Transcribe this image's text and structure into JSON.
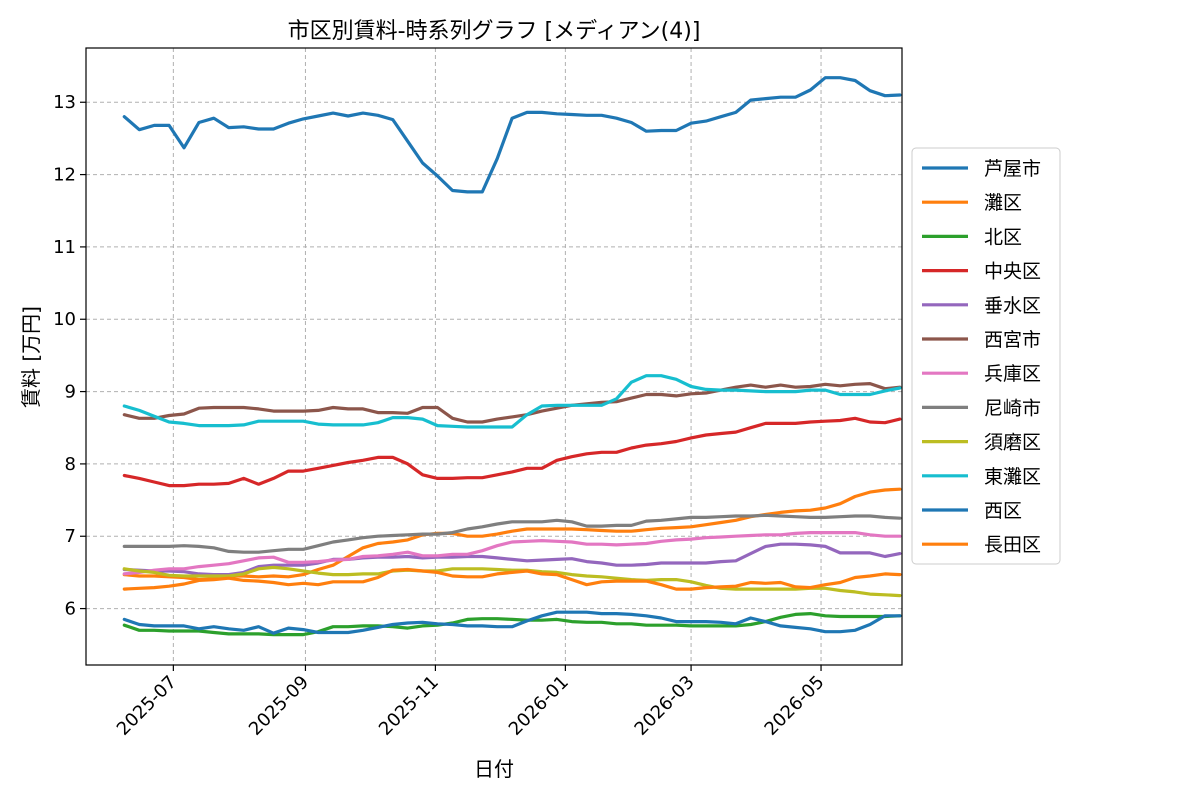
{
  "chart_data": {
    "type": "line",
    "title": "市区別賃料-時系列グラフ [メディアン(4)]",
    "xlabel": "日付",
    "ylabel": "賃料 [万円]",
    "grid": true,
    "legend_position": "right",
    "x_ticks": [
      "2025-07",
      "2025-09",
      "2025-11",
      "2026-01",
      "2026-03",
      "2026-05"
    ],
    "xlim": [
      "2025-05-21",
      "2026-06-08"
    ],
    "y_ticks": [
      6,
      7,
      8,
      9,
      10,
      11,
      12,
      13
    ],
    "ylim": [
      5.22,
      13.75
    ],
    "dates": [
      "2025-06-08",
      "2025-06-15",
      "2025-06-22",
      "2025-06-29",
      "2025-07-06",
      "2025-07-13",
      "2025-07-20",
      "2025-07-27",
      "2025-08-03",
      "2025-08-10",
      "2025-08-17",
      "2025-08-24",
      "2025-08-31",
      "2025-09-07",
      "2025-09-14",
      "2025-09-21",
      "2025-09-28",
      "2025-10-05",
      "2025-10-12",
      "2025-10-19",
      "2025-10-26",
      "2025-11-02",
      "2025-11-09",
      "2025-11-16",
      "2025-11-23",
      "2025-11-30",
      "2025-12-07",
      "2025-12-14",
      "2025-12-21",
      "2025-12-28",
      "2026-01-04",
      "2026-01-11",
      "2026-01-18",
      "2026-01-25",
      "2026-02-01",
      "2026-02-08",
      "2026-02-15",
      "2026-02-22",
      "2026-03-01",
      "2026-03-08",
      "2026-03-15",
      "2026-03-22",
      "2026-03-29",
      "2026-04-05",
      "2026-04-12",
      "2026-04-19",
      "2026-04-26",
      "2026-05-03",
      "2026-05-10",
      "2026-05-17",
      "2026-05-24",
      "2026-05-31",
      "2026-06-07"
    ],
    "series": [
      {
        "name": "芦屋市",
        "color": "#1f77b4",
        "values": [
          12.8,
          12.62,
          12.68,
          12.68,
          12.37,
          12.72,
          12.78,
          12.65,
          12.66,
          12.63,
          12.63,
          12.71,
          12.77,
          12.81,
          12.85,
          12.81,
          12.85,
          12.82,
          12.76,
          12.46,
          12.16,
          11.98,
          11.78,
          11.76,
          11.76,
          12.22,
          12.78,
          12.86,
          12.86,
          12.84,
          12.83,
          12.82,
          12.82,
          12.78,
          12.72,
          12.6,
          12.61,
          12.61,
          12.71,
          12.74,
          12.8,
          12.86,
          13.03,
          13.05,
          13.07,
          13.07,
          13.17,
          13.34,
          13.34,
          13.3,
          13.16,
          13.09,
          13.1
        ]
      },
      {
        "name": "灘区",
        "color": "#ff7f0e",
        "values": [
          6.47,
          6.45,
          6.45,
          6.44,
          6.43,
          6.4,
          6.41,
          6.45,
          6.45,
          6.44,
          6.45,
          6.44,
          6.47,
          6.54,
          6.6,
          6.72,
          6.84,
          6.9,
          6.92,
          6.95,
          7.02,
          7.04,
          7.04,
          7.0,
          7.0,
          7.03,
          7.07,
          7.1,
          7.1,
          7.1,
          7.1,
          7.09,
          7.08,
          7.07,
          7.07,
          7.09,
          7.11,
          7.12,
          7.13,
          7.16,
          7.19,
          7.22,
          7.27,
          7.3,
          7.33,
          7.35,
          7.36,
          7.39,
          7.45,
          7.55,
          7.61,
          7.64,
          7.65
        ]
      },
      {
        "name": "北区",
        "color": "#2ca02c",
        "values": [
          5.77,
          5.7,
          5.7,
          5.69,
          5.69,
          5.69,
          5.67,
          5.65,
          5.65,
          5.65,
          5.64,
          5.64,
          5.64,
          5.68,
          5.75,
          5.75,
          5.76,
          5.76,
          5.75,
          5.73,
          5.76,
          5.77,
          5.8,
          5.85,
          5.86,
          5.86,
          5.85,
          5.84,
          5.84,
          5.85,
          5.82,
          5.81,
          5.81,
          5.79,
          5.79,
          5.77,
          5.77,
          5.77,
          5.76,
          5.76,
          5.76,
          5.76,
          5.78,
          5.82,
          5.88,
          5.92,
          5.93,
          5.9,
          5.89,
          5.89,
          5.89,
          5.89,
          5.9
        ]
      },
      {
        "name": "中央区",
        "color": "#d62728",
        "values": [
          7.84,
          7.8,
          7.75,
          7.7,
          7.7,
          7.72,
          7.72,
          7.73,
          7.8,
          7.72,
          7.8,
          7.9,
          7.9,
          7.94,
          7.98,
          8.02,
          8.05,
          8.09,
          8.09,
          8.0,
          7.85,
          7.8,
          7.8,
          7.81,
          7.81,
          7.85,
          7.89,
          7.94,
          7.94,
          8.05,
          8.1,
          8.14,
          8.16,
          8.16,
          8.22,
          8.26,
          8.28,
          8.31,
          8.36,
          8.4,
          8.42,
          8.44,
          8.5,
          8.56,
          8.56,
          8.56,
          8.58,
          8.59,
          8.6,
          8.63,
          8.58,
          8.57,
          8.62
        ]
      },
      {
        "name": "垂水区",
        "color": "#9467bd",
        "values": [
          6.54,
          6.53,
          6.52,
          6.52,
          6.51,
          6.48,
          6.47,
          6.47,
          6.5,
          6.58,
          6.6,
          6.6,
          6.6,
          6.63,
          6.68,
          6.68,
          6.7,
          6.71,
          6.71,
          6.72,
          6.7,
          6.71,
          6.71,
          6.72,
          6.72,
          6.7,
          6.68,
          6.66,
          6.67,
          6.68,
          6.69,
          6.65,
          6.63,
          6.6,
          6.6,
          6.61,
          6.63,
          6.63,
          6.63,
          6.63,
          6.65,
          6.66,
          6.76,
          6.86,
          6.89,
          6.89,
          6.88,
          6.86,
          6.77,
          6.77,
          6.77,
          6.72,
          6.76
        ]
      },
      {
        "name": "西宮市",
        "color": "#8c564b",
        "values": [
          8.68,
          8.63,
          8.63,
          8.67,
          8.69,
          8.77,
          8.78,
          8.78,
          8.78,
          8.76,
          8.73,
          8.73,
          8.73,
          8.74,
          8.78,
          8.76,
          8.76,
          8.71,
          8.71,
          8.7,
          8.78,
          8.78,
          8.63,
          8.58,
          8.58,
          8.62,
          8.65,
          8.68,
          8.73,
          8.77,
          8.81,
          8.83,
          8.85,
          8.86,
          8.91,
          8.96,
          8.96,
          8.94,
          8.97,
          8.98,
          9.02,
          9.06,
          9.09,
          9.06,
          9.09,
          9.06,
          9.07,
          9.1,
          9.08,
          9.1,
          9.11,
          9.04,
          9.06
        ]
      },
      {
        "name": "兵庫区",
        "color": "#e377c2",
        "values": [
          6.48,
          6.5,
          6.53,
          6.55,
          6.55,
          6.58,
          6.6,
          6.62,
          6.66,
          6.7,
          6.71,
          6.64,
          6.64,
          6.65,
          6.67,
          6.68,
          6.72,
          6.73,
          6.75,
          6.78,
          6.73,
          6.73,
          6.75,
          6.75,
          6.8,
          6.87,
          6.92,
          6.93,
          6.94,
          6.93,
          6.92,
          6.89,
          6.89,
          6.88,
          6.89,
          6.9,
          6.93,
          6.95,
          6.96,
          6.98,
          6.99,
          7.0,
          7.01,
          7.02,
          7.02,
          7.04,
          7.05,
          7.05,
          7.05,
          7.05,
          7.02,
          7.0,
          7.0
        ]
      },
      {
        "name": "尼崎市",
        "color": "#7f7f7f",
        "values": [
          6.86,
          6.86,
          6.86,
          6.86,
          6.87,
          6.86,
          6.84,
          6.79,
          6.78,
          6.78,
          6.8,
          6.82,
          6.82,
          6.87,
          6.92,
          6.95,
          6.98,
          7.0,
          7.01,
          7.02,
          7.03,
          7.03,
          7.05,
          7.1,
          7.13,
          7.17,
          7.2,
          7.2,
          7.2,
          7.22,
          7.2,
          7.14,
          7.14,
          7.15,
          7.15,
          7.21,
          7.22,
          7.24,
          7.26,
          7.26,
          7.27,
          7.28,
          7.28,
          7.29,
          7.28,
          7.27,
          7.26,
          7.26,
          7.27,
          7.28,
          7.28,
          7.26,
          7.25
        ]
      },
      {
        "name": "須磨区",
        "color": "#bcbd22",
        "values": [
          6.55,
          6.52,
          6.5,
          6.46,
          6.45,
          6.45,
          6.45,
          6.45,
          6.48,
          6.55,
          6.57,
          6.55,
          6.52,
          6.49,
          6.47,
          6.47,
          6.48,
          6.48,
          6.52,
          6.53,
          6.52,
          6.52,
          6.55,
          6.55,
          6.55,
          6.54,
          6.53,
          6.53,
          6.51,
          6.5,
          6.47,
          6.45,
          6.44,
          6.42,
          6.4,
          6.39,
          6.4,
          6.4,
          6.37,
          6.32,
          6.28,
          6.27,
          6.27,
          6.27,
          6.27,
          6.27,
          6.28,
          6.28,
          6.25,
          6.23,
          6.2,
          6.19,
          6.18
        ]
      },
      {
        "name": "東灘区",
        "color": "#17becf",
        "values": [
          8.8,
          8.74,
          8.66,
          8.58,
          8.56,
          8.53,
          8.53,
          8.53,
          8.54,
          8.59,
          8.59,
          8.59,
          8.59,
          8.55,
          8.54,
          8.54,
          8.54,
          8.57,
          8.64,
          8.64,
          8.62,
          8.53,
          8.52,
          8.51,
          8.51,
          8.51,
          8.51,
          8.68,
          8.8,
          8.81,
          8.81,
          8.81,
          8.81,
          8.9,
          9.13,
          9.22,
          9.22,
          9.17,
          9.07,
          9.03,
          9.02,
          9.02,
          9.01,
          9.0,
          9.0,
          9.0,
          9.02,
          9.02,
          8.96,
          8.96,
          8.96,
          9.01,
          9.05
        ]
      },
      {
        "name": "西区",
        "color": "#1f77b4",
        "values": [
          5.85,
          5.78,
          5.76,
          5.76,
          5.76,
          5.72,
          5.75,
          5.72,
          5.7,
          5.75,
          5.66,
          5.73,
          5.71,
          5.67,
          5.67,
          5.67,
          5.7,
          5.74,
          5.78,
          5.8,
          5.81,
          5.79,
          5.78,
          5.76,
          5.76,
          5.75,
          5.75,
          5.83,
          5.9,
          5.95,
          5.95,
          5.95,
          5.93,
          5.93,
          5.92,
          5.9,
          5.87,
          5.82,
          5.82,
          5.82,
          5.81,
          5.79,
          5.87,
          5.82,
          5.76,
          5.74,
          5.72,
          5.68,
          5.68,
          5.7,
          5.78,
          5.9,
          5.9
        ]
      },
      {
        "name": "長田区",
        "color": "#ff7f0e",
        "values": [
          6.27,
          6.28,
          6.29,
          6.31,
          6.34,
          6.39,
          6.4,
          6.42,
          6.39,
          6.38,
          6.36,
          6.33,
          6.35,
          6.33,
          6.37,
          6.37,
          6.37,
          6.43,
          6.53,
          6.54,
          6.52,
          6.5,
          6.45,
          6.44,
          6.44,
          6.48,
          6.5,
          6.52,
          6.48,
          6.47,
          6.4,
          6.33,
          6.37,
          6.38,
          6.38,
          6.38,
          6.33,
          6.27,
          6.27,
          6.29,
          6.3,
          6.31,
          6.36,
          6.35,
          6.36,
          6.3,
          6.29,
          6.33,
          6.36,
          6.43,
          6.45,
          6.48,
          6.47
        ]
      }
    ]
  }
}
